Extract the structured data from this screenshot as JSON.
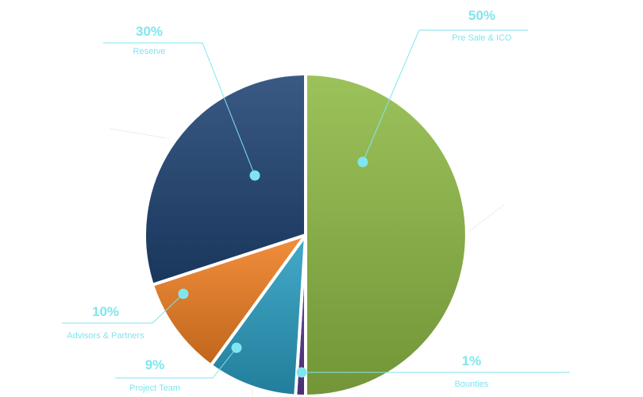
{
  "chart_data": {
    "type": "pie",
    "title": "",
    "slices": [
      {
        "label": "Pre Sale & ICO",
        "value": 50,
        "value_label": "50%",
        "color": "#8fba45"
      },
      {
        "label": "Bounties",
        "value": 1,
        "value_label": "1%",
        "color": "#5b3a8e"
      },
      {
        "label": "Project Team",
        "value": 9,
        "value_label": "9%",
        "color": "#2a9ec2"
      },
      {
        "label": "Advisors & Partners",
        "value": 10,
        "value_label": "10%",
        "color": "#f07f22"
      },
      {
        "label": "Reserve",
        "value": 30,
        "value_label": "30%",
        "color": "#1f4373"
      }
    ],
    "label_color": "#7fe6ef",
    "legend": "none"
  }
}
